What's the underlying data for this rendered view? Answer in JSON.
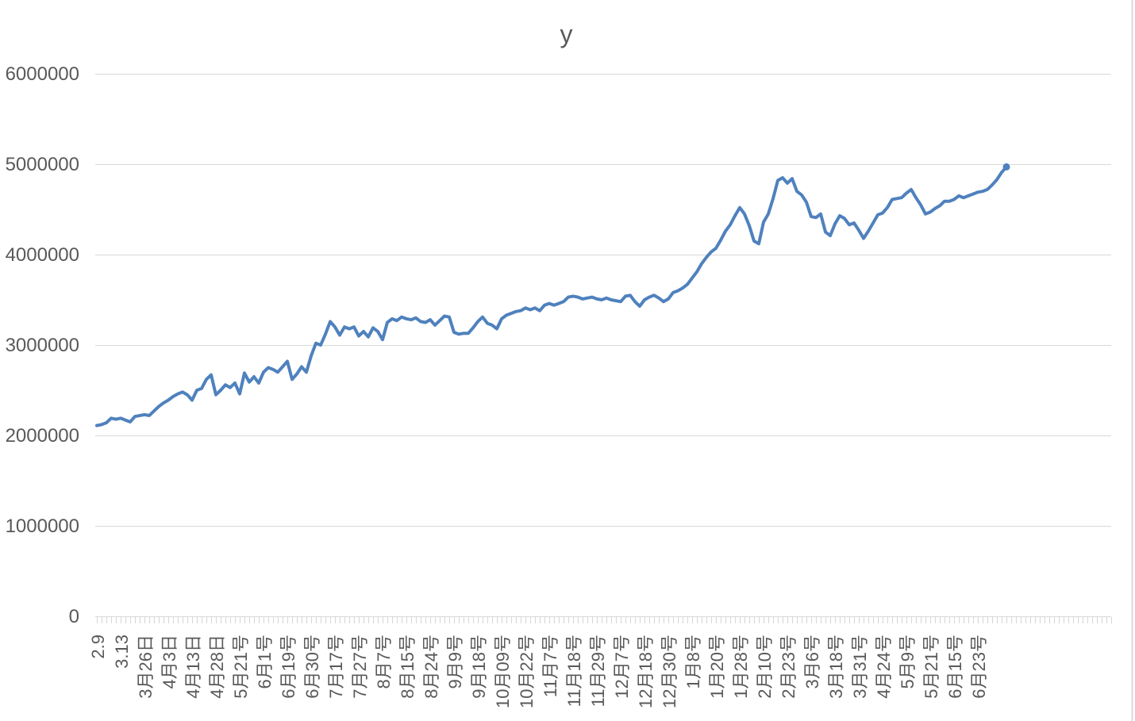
{
  "page": {
    "background": "#FFFFFF"
  },
  "chart_data": {
    "type": "line",
    "title": "y",
    "legend": "none",
    "grid": "horizontal",
    "ylim": [
      0,
      6000000
    ],
    "y_ticks": [
      0,
      1000000,
      2000000,
      3000000,
      4000000,
      5000000,
      6000000
    ],
    "label_every": 5,
    "x_tick_labels": [
      "2.9",
      "3.13",
      "3月26日",
      "4月3日",
      "4月13日",
      "4月28日",
      "5月21号",
      "6月1号",
      "6月19号",
      "6月30号",
      "7月17号",
      "7月27号",
      "8月7号",
      "8月15号",
      "8月24号",
      "9月9号",
      "9月18号",
      "10月09号",
      "10月22号",
      "11月7号",
      "11月18号",
      "11月29号",
      "12月7号",
      "12月18号",
      "12月30号",
      "1月8号",
      "1月20号",
      "1月28号",
      "2月10号",
      "2月23号",
      "3月6号",
      "3月18号",
      "3月31号",
      "4月24号",
      "5月9号",
      "5月21号",
      "6月15号",
      "6月23号"
    ],
    "series": [
      {
        "name": "y",
        "color": "#4F81BD",
        "values": [
          2110000,
          2120000,
          2140000,
          2190000,
          2180000,
          2190000,
          2170000,
          2150000,
          2210000,
          2220000,
          2230000,
          2220000,
          2270000,
          2320000,
          2360000,
          2390000,
          2430000,
          2460000,
          2480000,
          2450000,
          2390000,
          2500000,
          2520000,
          2620000,
          2670000,
          2450000,
          2500000,
          2560000,
          2530000,
          2580000,
          2460000,
          2690000,
          2590000,
          2650000,
          2580000,
          2700000,
          2750000,
          2730000,
          2700000,
          2760000,
          2820000,
          2620000,
          2680000,
          2760000,
          2700000,
          2880000,
          3020000,
          3000000,
          3120000,
          3260000,
          3200000,
          3110000,
          3200000,
          3180000,
          3200000,
          3100000,
          3150000,
          3090000,
          3190000,
          3150000,
          3060000,
          3250000,
          3290000,
          3270000,
          3310000,
          3290000,
          3280000,
          3300000,
          3260000,
          3250000,
          3280000,
          3220000,
          3270000,
          3320000,
          3310000,
          3140000,
          3120000,
          3130000,
          3130000,
          3190000,
          3260000,
          3310000,
          3240000,
          3220000,
          3180000,
          3290000,
          3330000,
          3350000,
          3370000,
          3380000,
          3410000,
          3390000,
          3410000,
          3380000,
          3440000,
          3460000,
          3440000,
          3460000,
          3480000,
          3530000,
          3540000,
          3530000,
          3510000,
          3520000,
          3530000,
          3510000,
          3500000,
          3520000,
          3500000,
          3490000,
          3480000,
          3540000,
          3550000,
          3480000,
          3430000,
          3500000,
          3530000,
          3550000,
          3520000,
          3480000,
          3510000,
          3580000,
          3600000,
          3630000,
          3670000,
          3740000,
          3810000,
          3900000,
          3970000,
          4030000,
          4070000,
          4160000,
          4260000,
          4330000,
          4430000,
          4520000,
          4450000,
          4320000,
          4150000,
          4120000,
          4360000,
          4450000,
          4620000,
          4820000,
          4850000,
          4790000,
          4840000,
          4700000,
          4660000,
          4580000,
          4420000,
          4410000,
          4450000,
          4250000,
          4210000,
          4340000,
          4430000,
          4400000,
          4330000,
          4350000,
          4270000,
          4180000,
          4260000,
          4350000,
          4440000,
          4460000,
          4520000,
          4610000,
          4620000,
          4630000,
          4680000,
          4720000,
          4630000,
          4550000,
          4450000,
          4470000,
          4510000,
          4540000,
          4590000,
          4590000,
          4610000,
          4650000,
          4630000,
          4650000,
          4670000,
          4690000,
          4700000,
          4720000,
          4770000,
          4830000,
          4910000,
          4970000
        ]
      }
    ],
    "colors": {
      "axis_label": "#595959",
      "title": "#595959",
      "gridline": "#D9D9D9",
      "tick": "#D6D6D6",
      "border": "#D9D9D9"
    }
  }
}
